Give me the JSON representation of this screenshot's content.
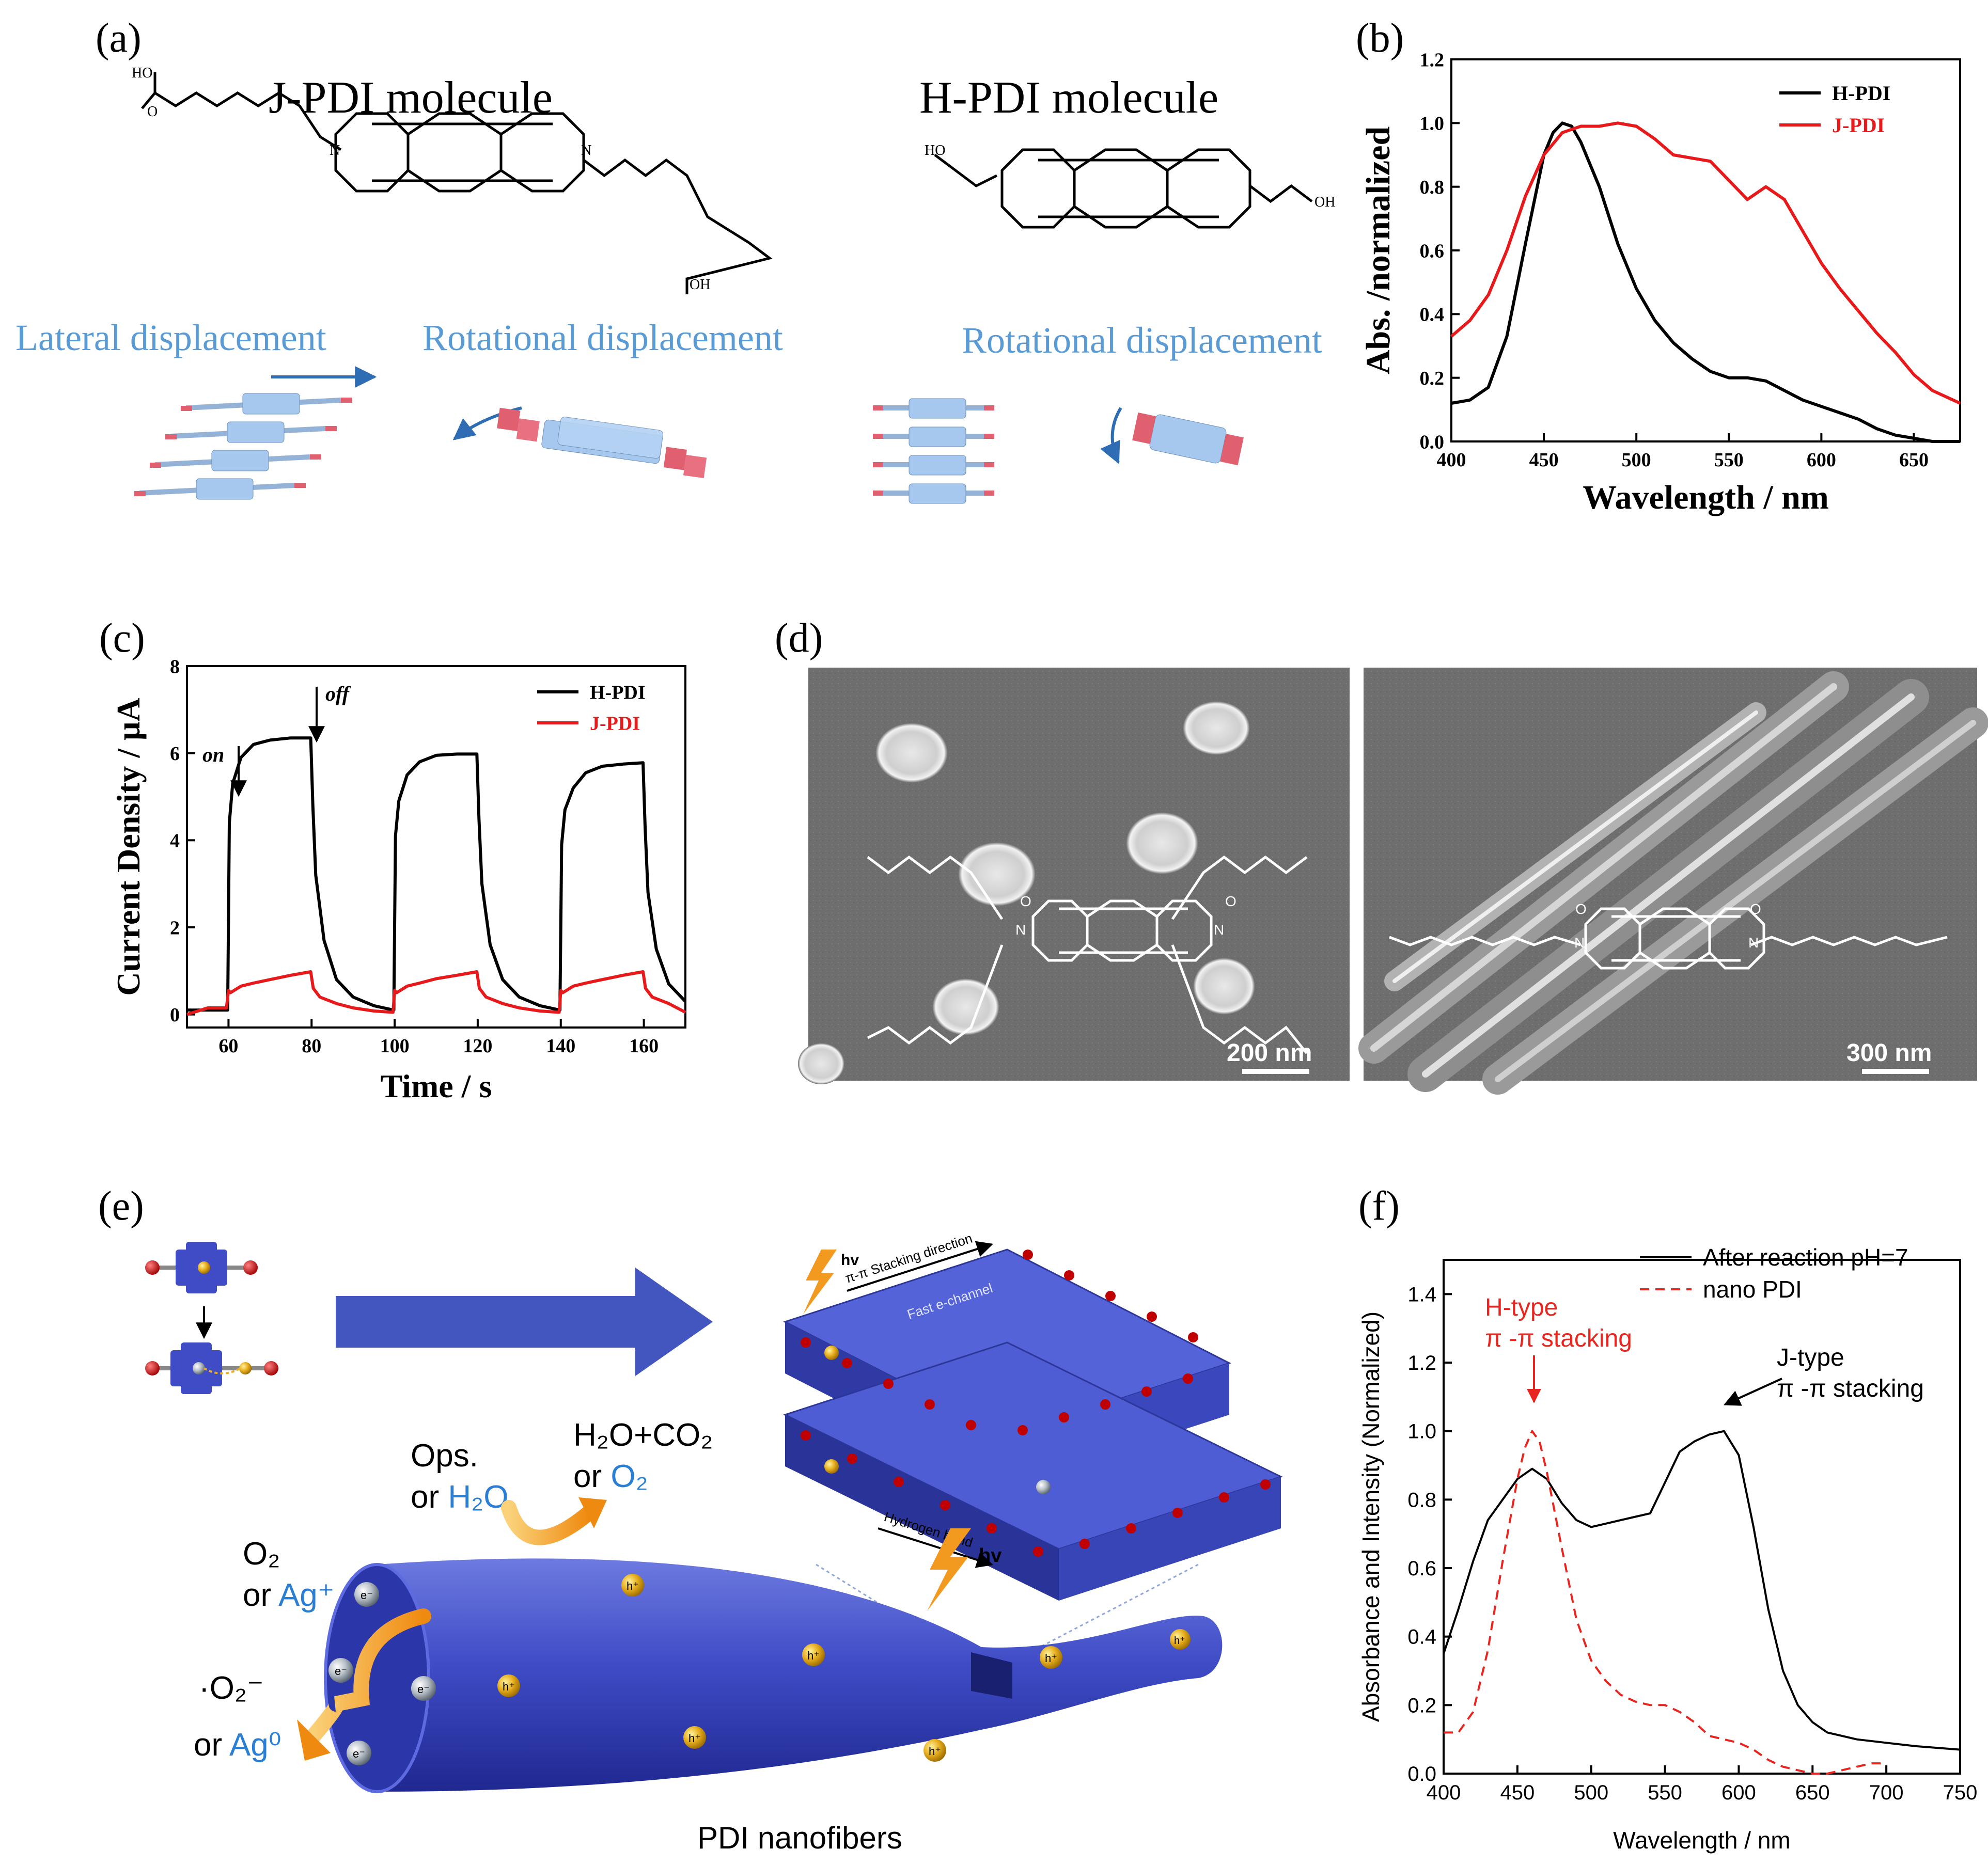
{
  "panels": {
    "a": {
      "label": "(a)",
      "j_title": "J-PDI molecule",
      "h_title": "H-PDI molecule",
      "lateral": "Lateral displacement",
      "rot1": "Rotational displacement",
      "rot2": "Rotational displacement",
      "atoms": {
        "ho": "HO",
        "o": "O",
        "n": "N",
        "oh": "OH"
      }
    },
    "b": {
      "label": "(b)"
    },
    "c": {
      "label": "(c)",
      "on": "on",
      "off": "off"
    },
    "d": {
      "label": "(d)",
      "scale_left": "200 nm",
      "scale_right": "300 nm",
      "atoms": {
        "o": "O",
        "n": "N"
      }
    },
    "e": {
      "label": "(e)",
      "hv1": "hv",
      "hv2": "hv",
      "stack_dir": "π-π Stacking direction",
      "fast_channel": "Fast e-channel",
      "hbond": "Hydrogen bond",
      "ops_l1": "Ops.",
      "ops_or": "or ",
      "ops_h2o": "H₂O",
      "prod_l1": "H₂O+CO₂",
      "prod_or": "or ",
      "prod_o2": "O₂",
      "o2_l1": "O₂",
      "o2_or": "or ",
      "o2_ag": "Ag⁺",
      "rad_l1": "·O₂⁻",
      "rad_or": "or ",
      "rad_ag0": "Ag⁰",
      "electron": "e⁻",
      "hole": "h⁺",
      "caption": "PDI nanofibers"
    },
    "f": {
      "label": "(f)",
      "h_annot_1": "H-type",
      "h_annot_2": "π -π stacking",
      "j_annot_1": "J-type",
      "j_annot_2": "π -π stacking"
    }
  },
  "colors": {
    "black": "#000000",
    "red": "#e8191a",
    "red_dash": "#e8251f",
    "blue_text": "#5b9bd5",
    "fiber": "#3f4cc6",
    "arrow_blue": "#4356c0",
    "orange": "#f29a1f"
  },
  "chart_data": [
    {
      "id": "b",
      "type": "line",
      "xlabel": "Wavelength / nm",
      "ylabel": "Abs. /normalized",
      "xlim": [
        400,
        675
      ],
      "ylim": [
        0,
        1.2
      ],
      "xticks": [
        "400",
        "450",
        "500",
        "550",
        "600",
        "650"
      ],
      "yticks": [
        "0.0",
        "0.2",
        "0.4",
        "0.6",
        "0.8",
        "1.0",
        "1.2"
      ],
      "legend_position": "top-right",
      "series": [
        {
          "name": "H-PDI",
          "color": "#000000",
          "x": [
            400,
            410,
            420,
            430,
            440,
            450,
            455,
            460,
            465,
            470,
            480,
            490,
            500,
            510,
            520,
            530,
            540,
            550,
            560,
            570,
            580,
            590,
            600,
            610,
            620,
            630,
            640,
            650,
            660,
            675
          ],
          "y": [
            0.12,
            0.13,
            0.17,
            0.33,
            0.62,
            0.9,
            0.97,
            1.0,
            0.99,
            0.94,
            0.8,
            0.62,
            0.48,
            0.38,
            0.31,
            0.26,
            0.22,
            0.2,
            0.2,
            0.19,
            0.16,
            0.13,
            0.11,
            0.09,
            0.07,
            0.04,
            0.02,
            0.01,
            0.0,
            0.0
          ]
        },
        {
          "name": "J-PDI",
          "color": "#e8191a",
          "x": [
            400,
            410,
            420,
            430,
            440,
            450,
            460,
            470,
            480,
            490,
            500,
            510,
            520,
            530,
            540,
            550,
            560,
            570,
            580,
            590,
            600,
            610,
            620,
            630,
            640,
            650,
            660,
            675
          ],
          "y": [
            0.33,
            0.38,
            0.46,
            0.6,
            0.77,
            0.9,
            0.97,
            0.99,
            0.99,
            1.0,
            0.99,
            0.95,
            0.9,
            0.89,
            0.88,
            0.82,
            0.76,
            0.8,
            0.76,
            0.66,
            0.56,
            0.48,
            0.41,
            0.34,
            0.28,
            0.21,
            0.16,
            0.12
          ]
        }
      ]
    },
    {
      "id": "c",
      "type": "line",
      "xlabel": "Time / s",
      "ylabel": "Current Density / μA",
      "xlim": [
        50,
        170
      ],
      "ylim": [
        -0.3,
        8
      ],
      "xticks": [
        "60",
        "80",
        "100",
        "120",
        "140",
        "160"
      ],
      "yticks": [
        "0",
        "2",
        "4",
        "6",
        "8"
      ],
      "legend_position": "top-right",
      "series": [
        {
          "name": "H-PDI",
          "color": "#000000",
          "x": [
            50,
            59.8,
            60.2,
            61,
            63,
            66,
            70,
            75,
            79.8,
            80.3,
            81,
            83,
            86,
            90,
            95,
            99.8,
            100.2,
            101,
            103,
            106,
            110,
            115,
            119.8,
            120.3,
            121,
            123,
            126,
            130,
            135,
            139.8,
            140.2,
            141,
            143,
            146,
            150,
            155,
            159.8,
            160.3,
            161,
            163,
            166,
            170
          ],
          "y": [
            0.1,
            0.1,
            4.4,
            5.3,
            5.9,
            6.2,
            6.3,
            6.35,
            6.35,
            4.8,
            3.2,
            1.7,
            0.8,
            0.4,
            0.2,
            0.1,
            4.1,
            4.9,
            5.5,
            5.8,
            5.95,
            5.98,
            5.98,
            4.5,
            3.0,
            1.6,
            0.8,
            0.4,
            0.2,
            0.1,
            3.9,
            4.7,
            5.2,
            5.55,
            5.7,
            5.75,
            5.78,
            4.3,
            2.8,
            1.5,
            0.7,
            0.3
          ]
        },
        {
          "name": "J-PDI",
          "color": "#e8191a",
          "x": [
            50,
            55,
            59.5,
            60,
            60.5,
            63,
            66,
            70,
            75,
            79.8,
            80.4,
            82,
            86,
            90,
            95,
            99.6,
            100,
            100.5,
            103,
            106,
            110,
            115,
            119.8,
            120.4,
            122,
            126,
            130,
            135,
            139.6,
            140,
            140.5,
            143,
            146,
            150,
            155,
            159.8,
            160.4,
            162,
            166,
            170
          ],
          "y": [
            0.0,
            0.15,
            0.15,
            0.55,
            0.5,
            0.65,
            0.72,
            0.8,
            0.9,
            0.98,
            0.6,
            0.4,
            0.25,
            0.15,
            0.08,
            0.05,
            0.55,
            0.5,
            0.65,
            0.72,
            0.82,
            0.9,
            0.98,
            0.6,
            0.4,
            0.25,
            0.15,
            0.08,
            0.05,
            0.55,
            0.5,
            0.65,
            0.72,
            0.8,
            0.9,
            0.98,
            0.6,
            0.4,
            0.25,
            0.05
          ]
        }
      ]
    },
    {
      "id": "f",
      "type": "line",
      "xlabel": "Wavelength / nm",
      "ylabel": "Absorbance and Intensity (Normalized)",
      "xlim": [
        400,
        750
      ],
      "ylim": [
        0,
        1.5
      ],
      "xticks": [
        "400",
        "450",
        "500",
        "550",
        "600",
        "650",
        "700",
        "750"
      ],
      "yticks": [
        "0.0",
        "0.2",
        "0.4",
        "0.6",
        "0.8",
        "1.0",
        "1.2",
        "1.4"
      ],
      "legend_position": "top-right",
      "series": [
        {
          "name": "After reaction pH=7",
          "color": "#000000",
          "dash": false,
          "x": [
            400,
            410,
            420,
            430,
            440,
            450,
            460,
            470,
            480,
            490,
            500,
            510,
            520,
            530,
            540,
            550,
            560,
            570,
            580,
            590,
            600,
            610,
            620,
            630,
            640,
            650,
            660,
            680,
            700,
            720,
            750
          ],
          "y": [
            0.35,
            0.48,
            0.62,
            0.74,
            0.8,
            0.86,
            0.89,
            0.86,
            0.79,
            0.74,
            0.72,
            0.73,
            0.74,
            0.75,
            0.76,
            0.85,
            0.94,
            0.97,
            0.99,
            1.0,
            0.93,
            0.72,
            0.48,
            0.3,
            0.2,
            0.15,
            0.12,
            0.1,
            0.09,
            0.08,
            0.07
          ]
        },
        {
          "name": "nano PDI",
          "color": "#e8251f",
          "dash": true,
          "x": [
            400,
            410,
            420,
            430,
            440,
            450,
            455,
            460,
            465,
            470,
            480,
            490,
            500,
            510,
            520,
            530,
            540,
            550,
            560,
            570,
            580,
            590,
            600,
            610,
            620,
            630,
            640,
            650,
            660,
            670,
            680,
            690,
            700
          ],
          "y": [
            0.12,
            0.12,
            0.18,
            0.36,
            0.62,
            0.86,
            0.95,
            1.0,
            0.97,
            0.88,
            0.66,
            0.45,
            0.33,
            0.27,
            0.23,
            0.21,
            0.2,
            0.2,
            0.18,
            0.15,
            0.11,
            0.1,
            0.09,
            0.07,
            0.04,
            0.02,
            0.01,
            0.0,
            0.0,
            0.01,
            0.02,
            0.03,
            0.03
          ]
        }
      ]
    }
  ]
}
